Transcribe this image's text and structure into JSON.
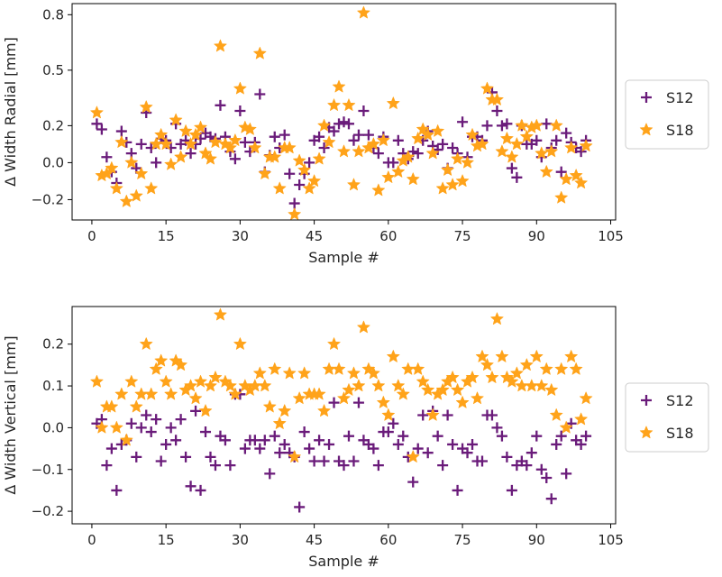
{
  "chart_data": [
    {
      "type": "scatter",
      "xlabel": "Sample #",
      "ylabel": "Δ Width Radial [mm]",
      "xlim": [
        -4,
        106
      ],
      "ylim": [
        -0.31,
        0.86
      ],
      "xticks": [
        0,
        15,
        30,
        45,
        60,
        75,
        90,
        105
      ],
      "yticks": [
        -0.2,
        0.0,
        0.2,
        0.5,
        0.8
      ],
      "ytick_labels": [
        "−0.2",
        "0.0",
        "0.2",
        "0.5",
        "0.8"
      ],
      "legend": [
        "S12",
        "S18"
      ],
      "series": [
        {
          "name": "S12",
          "marker": "plus",
          "color": "#6a1b7a",
          "x": [
            1,
            2,
            3,
            4,
            5,
            6,
            7,
            8,
            9,
            10,
            11,
            12,
            13,
            14,
            15,
            16,
            17,
            18,
            19,
            20,
            21,
            22,
            23,
            24,
            25,
            26,
            27,
            28,
            29,
            30,
            31,
            32,
            33,
            34,
            35,
            36,
            37,
            38,
            39,
            40,
            41,
            42,
            43,
            44,
            45,
            46,
            47,
            48,
            49,
            50,
            51,
            52,
            53,
            54,
            55,
            56,
            57,
            58,
            59,
            60,
            61,
            62,
            63,
            64,
            65,
            66,
            67,
            68,
            69,
            70,
            71,
            72,
            73,
            74,
            75,
            76,
            77,
            78,
            79,
            80,
            81,
            82,
            83,
            84,
            85,
            86,
            87,
            88,
            89,
            90,
            91,
            92,
            93,
            94,
            95,
            96,
            97,
            98,
            99,
            100
          ],
          "values": [
            0.21,
            0.18,
            0.03,
            -0.05,
            -0.11,
            0.17,
            0.11,
            0.05,
            -0.03,
            0.1,
            0.27,
            0.08,
            0.0,
            0.13,
            0.12,
            0.08,
            0.21,
            0.1,
            0.12,
            0.05,
            0.1,
            0.13,
            0.16,
            0.14,
            0.13,
            0.31,
            0.14,
            0.06,
            0.02,
            0.28,
            0.11,
            0.06,
            0.11,
            0.37,
            -0.05,
            0.04,
            0.14,
            0.08,
            0.15,
            -0.06,
            -0.22,
            -0.12,
            -0.06,
            0.0,
            0.12,
            0.14,
            0.08,
            0.19,
            0.17,
            0.21,
            0.22,
            0.21,
            0.12,
            0.15,
            0.28,
            0.15,
            0.08,
            0.05,
            0.14,
            0.0,
            0.0,
            0.12,
            0.05,
            0.02,
            0.06,
            0.05,
            0.12,
            0.17,
            0.09,
            0.07,
            0.1,
            -0.03,
            0.08,
            0.05,
            0.22,
            0.03,
            0.14,
            0.14,
            0.12,
            0.2,
            0.38,
            0.28,
            0.2,
            0.21,
            -0.03,
            -0.08,
            0.2,
            0.1,
            0.1,
            0.12,
            0.03,
            0.21,
            0.08,
            0.12,
            -0.05,
            0.16,
            0.11,
            0.08,
            0.06,
            0.12
          ]
        },
        {
          "name": "S18",
          "marker": "star",
          "color": "#ffa31a",
          "x": [
            1,
            2,
            3,
            4,
            5,
            6,
            7,
            8,
            9,
            10,
            11,
            12,
            13,
            14,
            15,
            16,
            17,
            18,
            19,
            20,
            21,
            22,
            23,
            24,
            25,
            26,
            27,
            28,
            29,
            30,
            31,
            32,
            33,
            34,
            35,
            36,
            37,
            38,
            39,
            40,
            41,
            42,
            43,
            44,
            45,
            46,
            47,
            48,
            49,
            50,
            51,
            52,
            53,
            54,
            55,
            56,
            57,
            58,
            59,
            60,
            61,
            62,
            63,
            64,
            65,
            66,
            67,
            68,
            69,
            70,
            71,
            72,
            73,
            74,
            75,
            76,
            77,
            78,
            79,
            80,
            81,
            82,
            83,
            84,
            85,
            86,
            87,
            88,
            89,
            90,
            91,
            92,
            93,
            94,
            95,
            96,
            97,
            98,
            99,
            100
          ],
          "values": [
            0.27,
            -0.07,
            -0.06,
            -0.03,
            -0.14,
            0.11,
            -0.21,
            0.0,
            -0.18,
            -0.06,
            0.3,
            -0.14,
            0.1,
            0.15,
            0.1,
            -0.01,
            0.23,
            0.03,
            0.17,
            0.1,
            0.15,
            0.19,
            0.05,
            0.02,
            0.11,
            0.63,
            0.1,
            0.08,
            0.12,
            0.4,
            0.19,
            0.18,
            0.08,
            0.59,
            -0.06,
            0.03,
            0.03,
            -0.14,
            0.08,
            0.08,
            -0.28,
            0.01,
            -0.04,
            -0.14,
            -0.1,
            0.02,
            0.2,
            0.11,
            0.31,
            0.41,
            0.06,
            0.31,
            -0.12,
            0.06,
            0.81,
            0.08,
            0.1,
            -0.15,
            0.12,
            -0.08,
            0.32,
            -0.05,
            0.01,
            0.03,
            -0.09,
            0.13,
            0.18,
            0.15,
            0.05,
            0.17,
            -0.14,
            -0.04,
            -0.12,
            0.02,
            -0.1,
            0.0,
            0.15,
            0.09,
            0.1,
            0.4,
            0.34,
            0.34,
            0.06,
            0.13,
            0.03,
            0.1,
            0.2,
            0.14,
            0.19,
            0.2,
            0.05,
            -0.05,
            0.06,
            0.2,
            -0.19,
            -0.09,
            0.08,
            -0.07,
            -0.11,
            0.09
          ]
        }
      ]
    },
    {
      "type": "scatter",
      "xlabel": "Sample #",
      "ylabel": "Δ Width Vertical [mm]",
      "xlim": [
        -4,
        106
      ],
      "ylim": [
        -0.23,
        0.29
      ],
      "xticks": [
        0,
        15,
        30,
        45,
        60,
        75,
        90,
        105
      ],
      "yticks": [
        -0.2,
        -0.1,
        0.0,
        0.1,
        0.2
      ],
      "ytick_labels": [
        "−0.2",
        "−0.1",
        "0.0",
        "0.1",
        "0.2"
      ],
      "legend": [
        "S12",
        "S18"
      ],
      "series": [
        {
          "name": "S12",
          "marker": "plus",
          "color": "#6a1b7a",
          "x": [
            1,
            2,
            3,
            4,
            5,
            6,
            7,
            8,
            9,
            10,
            11,
            12,
            13,
            14,
            15,
            16,
            17,
            18,
            19,
            20,
            21,
            22,
            23,
            24,
            25,
            26,
            27,
            28,
            29,
            30,
            31,
            32,
            33,
            34,
            35,
            36,
            37,
            38,
            39,
            40,
            41,
            42,
            43,
            44,
            45,
            46,
            47,
            48,
            49,
            50,
            51,
            52,
            53,
            54,
            55,
            56,
            57,
            58,
            59,
            60,
            61,
            62,
            63,
            64,
            65,
            66,
            67,
            68,
            69,
            70,
            71,
            72,
            73,
            74,
            75,
            76,
            77,
            78,
            79,
            80,
            81,
            82,
            83,
            84,
            85,
            86,
            87,
            88,
            89,
            90,
            91,
            92,
            93,
            94,
            95,
            96,
            97,
            98,
            99,
            100
          ],
          "values": [
            0.01,
            0.02,
            -0.09,
            -0.05,
            -0.15,
            -0.04,
            -0.03,
            0.01,
            -0.07,
            0.0,
            0.03,
            -0.01,
            0.02,
            -0.08,
            -0.04,
            0.0,
            -0.03,
            0.02,
            -0.07,
            -0.14,
            0.04,
            -0.15,
            -0.01,
            -0.07,
            -0.09,
            -0.02,
            -0.03,
            -0.09,
            0.08,
            0.08,
            -0.05,
            -0.03,
            -0.03,
            -0.05,
            -0.03,
            -0.11,
            -0.02,
            -0.06,
            -0.04,
            -0.06,
            -0.07,
            -0.19,
            -0.01,
            -0.05,
            -0.08,
            -0.03,
            -0.08,
            -0.04,
            0.06,
            -0.08,
            -0.09,
            -0.02,
            -0.08,
            0.06,
            -0.03,
            -0.04,
            -0.05,
            -0.09,
            -0.01,
            -0.01,
            0.01,
            -0.04,
            -0.02,
            -0.07,
            -0.13,
            -0.05,
            0.03,
            -0.06,
            0.04,
            -0.02,
            -0.09,
            0.03,
            -0.04,
            -0.15,
            -0.05,
            -0.06,
            -0.04,
            -0.08,
            -0.08,
            0.03,
            0.03,
            0.0,
            -0.02,
            -0.07,
            -0.15,
            -0.09,
            -0.08,
            -0.09,
            -0.06,
            -0.02,
            -0.1,
            -0.12,
            -0.17,
            -0.04,
            -0.02,
            -0.11,
            0.01,
            -0.03,
            -0.04,
            -0.02
          ]
        },
        {
          "name": "S18",
          "marker": "star",
          "color": "#ffa31a",
          "x": [
            1,
            2,
            3,
            4,
            5,
            6,
            7,
            8,
            9,
            10,
            11,
            12,
            13,
            14,
            15,
            16,
            17,
            18,
            19,
            20,
            21,
            22,
            23,
            24,
            25,
            26,
            27,
            28,
            29,
            30,
            31,
            32,
            33,
            34,
            35,
            36,
            37,
            38,
            39,
            40,
            41,
            42,
            43,
            44,
            45,
            46,
            47,
            48,
            49,
            50,
            51,
            52,
            53,
            54,
            55,
            56,
            57,
            58,
            59,
            60,
            61,
            62,
            63,
            64,
            65,
            66,
            67,
            68,
            69,
            70,
            71,
            72,
            73,
            74,
            75,
            76,
            77,
            78,
            79,
            80,
            81,
            82,
            83,
            84,
            85,
            86,
            87,
            88,
            89,
            90,
            91,
            92,
            93,
            94,
            95,
            96,
            97,
            98,
            99,
            100
          ],
          "values": [
            0.11,
            0.0,
            0.05,
            0.05,
            0.0,
            0.08,
            -0.03,
            0.11,
            0.05,
            0.08,
            0.2,
            0.08,
            0.14,
            0.16,
            0.11,
            0.08,
            0.16,
            0.15,
            0.09,
            0.1,
            0.07,
            0.11,
            0.04,
            0.1,
            0.12,
            0.27,
            0.11,
            0.1,
            0.08,
            0.2,
            0.1,
            0.09,
            0.1,
            0.13,
            0.1,
            0.05,
            0.14,
            0.01,
            0.04,
            0.13,
            -0.07,
            0.07,
            0.13,
            0.08,
            0.08,
            0.08,
            0.04,
            0.14,
            0.2,
            0.14,
            0.07,
            0.09,
            0.13,
            0.1,
            0.24,
            0.14,
            0.13,
            0.1,
            0.06,
            0.03,
            0.17,
            0.1,
            0.08,
            0.14,
            -0.07,
            0.14,
            0.11,
            0.09,
            0.03,
            0.08,
            0.09,
            0.11,
            0.12,
            0.09,
            0.06,
            0.11,
            0.12,
            0.07,
            0.17,
            0.15,
            0.12,
            0.26,
            0.17,
            0.12,
            0.11,
            0.13,
            0.1,
            0.15,
            0.1,
            0.17,
            0.1,
            0.14,
            0.09,
            0.03,
            0.14,
            0.0,
            0.17,
            0.14,
            0.02,
            0.07
          ]
        }
      ]
    }
  ]
}
